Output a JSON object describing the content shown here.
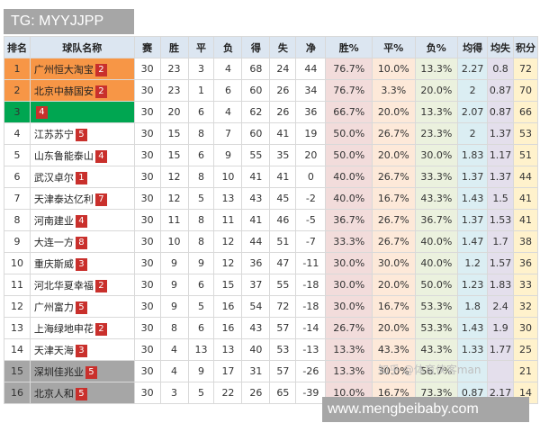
{
  "watermark_top": "TG: MYYJJPP",
  "watermark_bottom": "www.mengbeibaby.com",
  "watermark_zhihu": "知乎 @体育侠客man",
  "colors": {
    "top2": "#f79646",
    "third": "#00a651",
    "bottom2": "#a6a6a6",
    "header": "#dce6f1",
    "badge": "#c9302c"
  },
  "headers": [
    "排名",
    "球队名称",
    "赛",
    "胜",
    "平",
    "负",
    "得",
    "失",
    "净",
    "胜%",
    "平%",
    "负%",
    "均得",
    "均失",
    "积分"
  ],
  "rows": [
    {
      "rank": "1",
      "team": "广州恒大淘宝",
      "badge": "2",
      "p": "30",
      "w": "23",
      "d": "3",
      "l": "4",
      "gf": "68",
      "ga": "24",
      "gd": "44",
      "wp": "76.7%",
      "dp": "10.0%",
      "lp": "13.3%",
      "avgf": "2.27",
      "avga": "0.8",
      "pts": "72",
      "hl": "top2"
    },
    {
      "rank": "2",
      "team": "北京中赫国安",
      "badge": "2",
      "p": "30",
      "w": "23",
      "d": "1",
      "l": "6",
      "gf": "60",
      "ga": "26",
      "gd": "34",
      "wp": "76.7%",
      "dp": "3.3%",
      "lp": "20.0%",
      "avgf": "2",
      "avga": "0.87",
      "pts": "70",
      "hl": "top2"
    },
    {
      "rank": "3",
      "team": "",
      "badge": "4",
      "p": "30",
      "w": "20",
      "d": "6",
      "l": "4",
      "gf": "62",
      "ga": "26",
      "gd": "36",
      "wp": "66.7%",
      "dp": "20.0%",
      "lp": "13.3%",
      "avgf": "2.07",
      "avga": "0.87",
      "pts": "66",
      "hl": "third"
    },
    {
      "rank": "4",
      "team": "江苏苏宁",
      "badge": "5",
      "p": "30",
      "w": "15",
      "d": "8",
      "l": "7",
      "gf": "60",
      "ga": "41",
      "gd": "19",
      "wp": "50.0%",
      "dp": "26.7%",
      "lp": "23.3%",
      "avgf": "2",
      "avga": "1.37",
      "pts": "53",
      "hl": ""
    },
    {
      "rank": "5",
      "team": "山东鲁能泰山",
      "badge": "4",
      "p": "30",
      "w": "15",
      "d": "6",
      "l": "9",
      "gf": "55",
      "ga": "35",
      "gd": "20",
      "wp": "50.0%",
      "dp": "20.0%",
      "lp": "30.0%",
      "avgf": "1.83",
      "avga": "1.17",
      "pts": "51",
      "hl": ""
    },
    {
      "rank": "6",
      "team": "武汉卓尔",
      "badge": "1",
      "p": "30",
      "w": "12",
      "d": "8",
      "l": "10",
      "gf": "41",
      "ga": "41",
      "gd": "0",
      "wp": "40.0%",
      "dp": "26.7%",
      "lp": "33.3%",
      "avgf": "1.37",
      "avga": "1.37",
      "pts": "44",
      "hl": ""
    },
    {
      "rank": "7",
      "team": "天津泰达亿利",
      "badge": "7",
      "p": "30",
      "w": "12",
      "d": "5",
      "l": "13",
      "gf": "43",
      "ga": "45",
      "gd": "-2",
      "wp": "40.0%",
      "dp": "16.7%",
      "lp": "43.3%",
      "avgf": "1.43",
      "avga": "1.5",
      "pts": "41",
      "hl": ""
    },
    {
      "rank": "8",
      "team": "河南建业",
      "badge": "4",
      "p": "30",
      "w": "11",
      "d": "8",
      "l": "11",
      "gf": "41",
      "ga": "46",
      "gd": "-5",
      "wp": "36.7%",
      "dp": "26.7%",
      "lp": "36.7%",
      "avgf": "1.37",
      "avga": "1.53",
      "pts": "41",
      "hl": ""
    },
    {
      "rank": "9",
      "team": "大连一方",
      "badge": "8",
      "p": "30",
      "w": "10",
      "d": "8",
      "l": "12",
      "gf": "44",
      "ga": "51",
      "gd": "-7",
      "wp": "33.3%",
      "dp": "26.7%",
      "lp": "40.0%",
      "avgf": "1.47",
      "avga": "1.7",
      "pts": "38",
      "hl": ""
    },
    {
      "rank": "10",
      "team": "重庆斯威",
      "badge": "3",
      "p": "30",
      "w": "9",
      "d": "9",
      "l": "12",
      "gf": "36",
      "ga": "47",
      "gd": "-11",
      "wp": "30.0%",
      "dp": "30.0%",
      "lp": "40.0%",
      "avgf": "1.2",
      "avga": "1.57",
      "pts": "36",
      "hl": ""
    },
    {
      "rank": "11",
      "team": "河北华夏幸福",
      "badge": "2",
      "p": "30",
      "w": "9",
      "d": "6",
      "l": "15",
      "gf": "37",
      "ga": "55",
      "gd": "-18",
      "wp": "30.0%",
      "dp": "20.0%",
      "lp": "50.0%",
      "avgf": "1.23",
      "avga": "1.83",
      "pts": "33",
      "hl": ""
    },
    {
      "rank": "12",
      "team": "广州富力",
      "badge": "5",
      "p": "30",
      "w": "9",
      "d": "5",
      "l": "16",
      "gf": "54",
      "ga": "72",
      "gd": "-18",
      "wp": "30.0%",
      "dp": "16.7%",
      "lp": "53.3%",
      "avgf": "1.8",
      "avga": "2.4",
      "pts": "32",
      "hl": ""
    },
    {
      "rank": "13",
      "team": "上海绿地申花",
      "badge": "2",
      "p": "30",
      "w": "8",
      "d": "6",
      "l": "16",
      "gf": "43",
      "ga": "57",
      "gd": "-14",
      "wp": "26.7%",
      "dp": "20.0%",
      "lp": "53.3%",
      "avgf": "1.43",
      "avga": "1.9",
      "pts": "30",
      "hl": ""
    },
    {
      "rank": "14",
      "team": "天津天海",
      "badge": "3",
      "p": "30",
      "w": "4",
      "d": "13",
      "l": "13",
      "gf": "40",
      "ga": "53",
      "gd": "-13",
      "wp": "13.3%",
      "dp": "43.3%",
      "lp": "43.3%",
      "avgf": "1.33",
      "avga": "1.77",
      "pts": "25",
      "hl": ""
    },
    {
      "rank": "15",
      "team": "深圳佳兆业",
      "badge": "5",
      "p": "30",
      "w": "4",
      "d": "9",
      "l": "17",
      "gf": "31",
      "ga": "57",
      "gd": "-26",
      "wp": "13.3%",
      "dp": "30.0%",
      "lp": "56.7%",
      "avgf": "",
      "avga": "",
      "pts": "21",
      "hl": "bottom2"
    },
    {
      "rank": "16",
      "team": "北京人和",
      "badge": "5",
      "p": "30",
      "w": "3",
      "d": "5",
      "l": "22",
      "gf": "26",
      "ga": "65",
      "gd": "-39",
      "wp": "10.0%",
      "dp": "16.7%",
      "lp": "73.3%",
      "avgf": "0.87",
      "avga": "2.17",
      "pts": "14",
      "hl": "bottom2"
    }
  ]
}
